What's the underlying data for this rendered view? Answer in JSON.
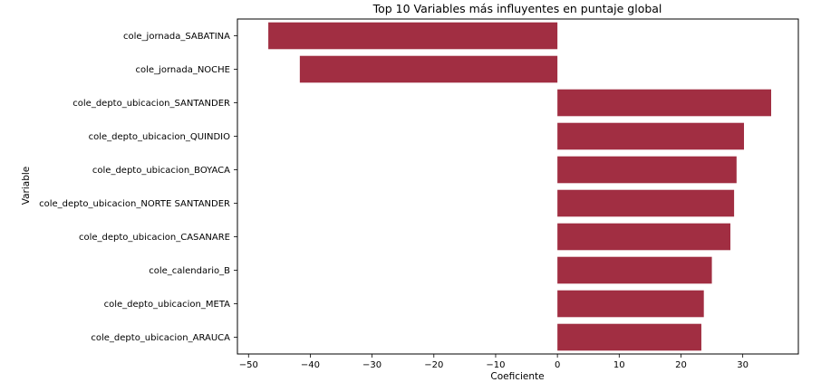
{
  "chart_data": {
    "type": "bar",
    "orientation": "horizontal",
    "title": "Top 10 Variables más influyentes en puntaje global",
    "xlabel": "Coeficiente",
    "ylabel": "Variable",
    "categories": [
      "cole_jornada_SABATINA",
      "cole_jornada_NOCHE",
      "cole_depto_ubicacion_SANTANDER",
      "cole_depto_ubicacion_QUINDIO",
      "cole_depto_ubicacion_BOYACA",
      "cole_depto_ubicacion_NORTE SANTANDER",
      "cole_depto_ubicacion_CASANARE",
      "cole_calendario_B",
      "cole_depto_ubicacion_META",
      "cole_depto_ubicacion_ARAUCA"
    ],
    "values": [
      -46.8,
      -41.7,
      34.6,
      30.2,
      29.0,
      28.6,
      28.0,
      25.0,
      23.7,
      23.3
    ],
    "xlim": [
      -51.8,
      39.0
    ],
    "xticks": [
      -50,
      -40,
      -30,
      -20,
      -10,
      0,
      10,
      20,
      30
    ],
    "xtick_labels": [
      "−50",
      "−40",
      "−30",
      "−20",
      "−10",
      "0",
      "10",
      "20",
      "30"
    ],
    "bar_color": "#a12e42",
    "grid": false,
    "legend": "none"
  }
}
